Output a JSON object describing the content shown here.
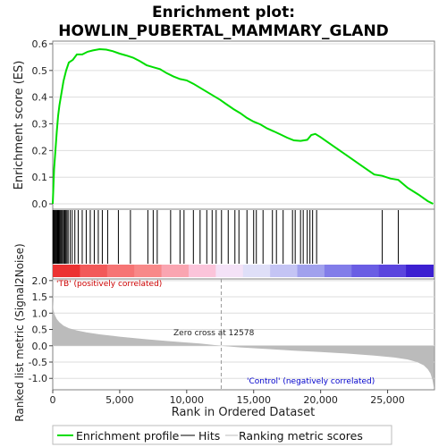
{
  "title_line1": "Enrichment plot:",
  "title_line2": "HOWLIN_PUBERTAL_MAMMARY_GLAND",
  "legend": {
    "profile": "Enrichment profile",
    "hits": "Hits",
    "metric": "Ranking metric scores"
  },
  "colors": {
    "profile": "#00dd00",
    "hits": "#000000",
    "metric": "#bbbbbb",
    "positive_label": "#cc0000",
    "negative_label": "#0000cc",
    "frame": "#808080"
  },
  "chart_data": [
    {
      "type": "line",
      "panel": "running-enrichment-score",
      "xlabel": "",
      "ylabel": "Enrichment score (ES)",
      "xlim": [
        0,
        28500
      ],
      "ylim": [
        -0.02,
        0.61
      ],
      "yticks": [
        "0.0",
        "0.1",
        "0.2",
        "0.3",
        "0.4",
        "0.5",
        "0.6"
      ],
      "series": [
        {
          "x": [
            0,
            100,
            200,
            300,
            400,
            500,
            600,
            700,
            800,
            900,
            1000,
            1200,
            1500,
            1800,
            2200,
            2600,
            3000,
            3500,
            4000,
            4500,
            5000,
            5500,
            6000,
            6500,
            7000,
            7500,
            8000,
            8500,
            9000,
            9500,
            10000,
            10500,
            11000,
            11500,
            12000,
            12500,
            13000,
            13500,
            14000,
            14500,
            15000,
            15500,
            16000,
            16500,
            17000,
            17500,
            18000,
            18500,
            19000,
            19300,
            19600,
            20000,
            21000,
            22000,
            23000,
            24000,
            24600,
            25200,
            25800,
            26500,
            27300,
            28000,
            28400
          ],
          "y": [
            0.0,
            0.13,
            0.2,
            0.27,
            0.33,
            0.37,
            0.4,
            0.43,
            0.46,
            0.48,
            0.5,
            0.53,
            0.54,
            0.56,
            0.56,
            0.57,
            0.575,
            0.58,
            0.578,
            0.572,
            0.563,
            0.556,
            0.548,
            0.535,
            0.52,
            0.512,
            0.505,
            0.49,
            0.478,
            0.468,
            0.463,
            0.45,
            0.435,
            0.42,
            0.405,
            0.39,
            0.372,
            0.355,
            0.34,
            0.322,
            0.308,
            0.298,
            0.283,
            0.272,
            0.26,
            0.248,
            0.238,
            0.236,
            0.24,
            0.258,
            0.262,
            0.25,
            0.215,
            0.18,
            0.145,
            0.11,
            0.105,
            0.095,
            0.09,
            0.06,
            0.035,
            0.01,
            0.0
          ]
        }
      ]
    },
    {
      "type": "scatter",
      "panel": "hits",
      "xlim": [
        0,
        28500
      ],
      "x": [
        20,
        60,
        110,
        160,
        220,
        280,
        340,
        400,
        460,
        520,
        590,
        660,
        740,
        820,
        900,
        980,
        1060,
        1150,
        1300,
        1450,
        1650,
        1900,
        2200,
        2500,
        2800,
        3100,
        3400,
        3700,
        4100,
        4900,
        5800,
        7100,
        7500,
        7800,
        8800,
        9500,
        9800,
        10500,
        11000,
        11500,
        11900,
        12200,
        12600,
        13100,
        13600,
        13900,
        14500,
        15000,
        15200,
        15700,
        16400,
        16700,
        17200,
        17900,
        18100,
        18500,
        18700,
        19000,
        19200,
        19400,
        19700,
        24600,
        25800
      ]
    },
    {
      "type": "area",
      "panel": "ranked-list-metric",
      "xlabel": "Rank in Ordered Dataset",
      "ylabel": "Ranked list metric (Signal2Noise)",
      "xlim": [
        0,
        28500
      ],
      "ylim": [
        -1.35,
        2.05
      ],
      "xticks": [
        "0",
        "5,000",
        "10,000",
        "15,000",
        "20,000",
        "25,000"
      ],
      "yticks": [
        "2.0",
        "1.5",
        "1.0",
        "0.5",
        "0.0",
        "-0.5",
        "-1.0"
      ],
      "x": [
        0,
        50,
        150,
        300,
        500,
        800,
        1200,
        1800,
        2500,
        3500,
        5000,
        7000,
        9000,
        11000,
        12578,
        14000,
        16000,
        18000,
        20000,
        22000,
        24000,
        25500,
        26500,
        27200,
        27700,
        28000,
        28200,
        28350,
        28450
      ],
      "values": [
        1.4,
        1.1,
        0.95,
        0.82,
        0.72,
        0.62,
        0.54,
        0.47,
        0.41,
        0.35,
        0.28,
        0.2,
        0.13,
        0.07,
        0.0,
        -0.05,
        -0.1,
        -0.15,
        -0.19,
        -0.24,
        -0.3,
        -0.36,
        -0.42,
        -0.5,
        -0.6,
        -0.72,
        -0.85,
        -1.05,
        -1.28
      ],
      "annotations": {
        "zero_cross": "Zero cross at 12578",
        "zero_cross_rank": 12578,
        "positive": "'TB' (positively correlated)",
        "negative": "'Control' (negatively correlated)"
      }
    }
  ]
}
